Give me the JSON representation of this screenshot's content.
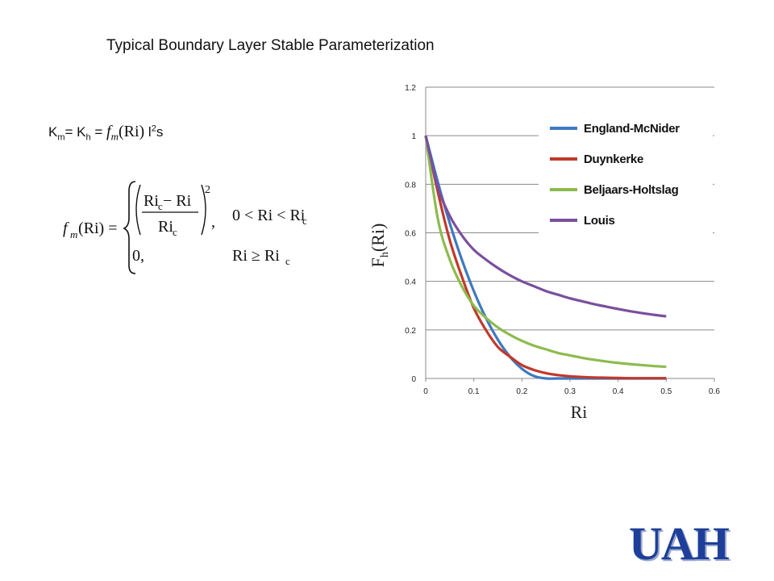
{
  "slide": {
    "title": "Typical Boundary Layer Stable Parameterization",
    "k_equation": {
      "km": "K",
      "km_sub": "m",
      "eq1": "= K",
      "kh_sub": "h",
      "eq2": " = ",
      "f": "f",
      "f_sub": "m",
      "arg": "(Ri)",
      "l": " l",
      "l_sup": "2",
      "s": "s"
    },
    "formula": {
      "lhs_f": "f",
      "lhs_sub": "m",
      "lhs_arg": "(Ri) =",
      "num": "Ri",
      "num_sub": "c",
      "num_rest": " − Ri",
      "den": "Ri",
      "den_sub": "c",
      "power": "2",
      "comma": ",",
      "cond1": "0 < Ri < Ri",
      "cond1_sub": "c",
      "zero": "0,",
      "cond2": "Ri ≥ Ri",
      "cond2_sub": "c"
    },
    "logo": "UAH"
  },
  "chart_data": {
    "type": "line",
    "xlabel": "Ri",
    "ylabel": "F",
    "ylabel_sub": "h",
    "ylabel_arg": "(Ri)",
    "xlim": [
      0,
      0.6
    ],
    "ylim": [
      0,
      1.2
    ],
    "xticks": [
      "0",
      "0.1",
      "0.2",
      "0.3",
      "0.4",
      "0.5",
      "0.6"
    ],
    "yticks": [
      "0",
      "0.2",
      "0.4",
      "0.6",
      "0.8",
      "1",
      "1.2"
    ],
    "grid": true,
    "legend": "top-right",
    "x": [
      0,
      0.025,
      0.05,
      0.075,
      0.1,
      0.125,
      0.15,
      0.175,
      0.2,
      0.225,
      0.25,
      0.275,
      0.3,
      0.325,
      0.35,
      0.375,
      0.4,
      0.425,
      0.45,
      0.475,
      0.5
    ],
    "series": [
      {
        "name": "England-McNider",
        "color": "#3e79c0",
        "values": [
          1,
          0.81,
          0.64,
          0.49,
          0.36,
          0.25,
          0.16,
          0.09,
          0.04,
          0.01,
          0,
          0,
          0,
          0,
          0,
          0,
          0,
          0,
          0,
          0,
          0
        ]
      },
      {
        "name": "Duynkerke",
        "color": "#c0392b",
        "values": [
          1,
          0.77,
          0.57,
          0.42,
          0.29,
          0.2,
          0.13,
          0.09,
          0.055,
          0.035,
          0.022,
          0.014,
          0.009,
          0.006,
          0.004,
          0.003,
          0.002,
          0.001,
          0.001,
          0.001,
          0.001
        ]
      },
      {
        "name": "Beljaars-Holtslag",
        "color": "#8dbb4e",
        "values": [
          1,
          0.66,
          0.49,
          0.38,
          0.3,
          0.25,
          0.21,
          0.18,
          0.155,
          0.135,
          0.12,
          0.105,
          0.095,
          0.085,
          0.077,
          0.07,
          0.064,
          0.059,
          0.055,
          0.051,
          0.048
        ]
      },
      {
        "name": "Louis",
        "color": "#7a4f9e",
        "values": [
          1,
          0.79,
          0.67,
          0.59,
          0.53,
          0.49,
          0.455,
          0.425,
          0.4,
          0.38,
          0.36,
          0.345,
          0.33,
          0.318,
          0.306,
          0.296,
          0.286,
          0.277,
          0.269,
          0.262,
          0.256
        ]
      }
    ]
  }
}
